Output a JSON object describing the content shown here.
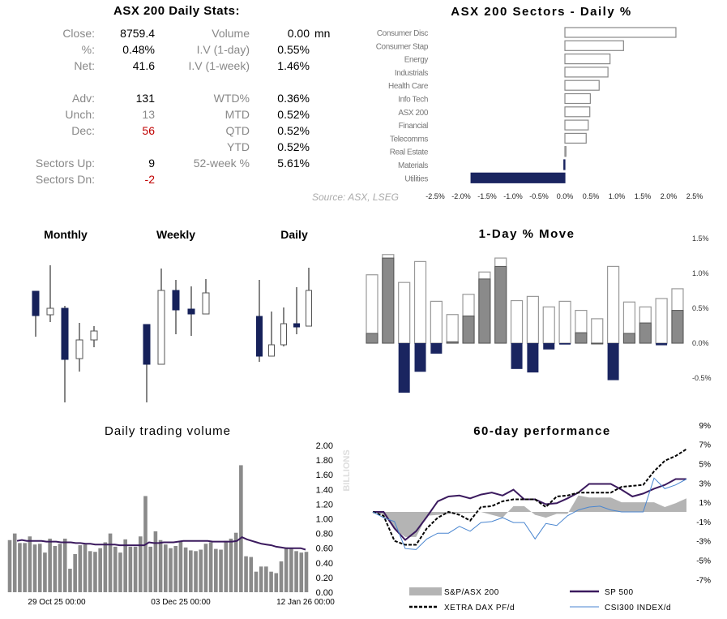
{
  "stats": {
    "title": "ASX 200 Daily Stats:",
    "left": [
      {
        "label": "Close:",
        "value": "8759.4"
      },
      {
        "label": "%:",
        "value": "0.48%"
      },
      {
        "label": "Net:",
        "value": "41.6"
      },
      {
        "label": "Adv:",
        "value": "131"
      },
      {
        "label": "Unch:",
        "value": "13"
      },
      {
        "label": "Dec:",
        "value": "56"
      },
      {
        "label": "Sectors Up:",
        "value": "9"
      },
      {
        "label": "Sectors Dn:",
        "value": "-2"
      }
    ],
    "right": [
      {
        "label": "Volume",
        "value": "0.00",
        "unit": "mn"
      },
      {
        "label": "I.V (1-day)",
        "value": "0.55%"
      },
      {
        "label": "I.V (1-week)",
        "value": "1.46%"
      },
      {
        "label": "WTD%",
        "value": "0.36%"
      },
      {
        "label": "MTD",
        "value": "0.52%"
      },
      {
        "label": "QTD",
        "value": "0.52%"
      },
      {
        "label": "YTD",
        "value": "0.52%"
      },
      {
        "label": "52-week %",
        "value": "5.61%"
      }
    ],
    "source": "Source: ASX, LSEG",
    "colors": {
      "negative": "#c00000"
    }
  },
  "chart_data": [
    {
      "id": "sectors",
      "type": "bar",
      "orientation": "horizontal",
      "title": "ASX 200 Sectors - Daily %",
      "categories": [
        "Consumer Disc",
        "Consumer Stap",
        "Energy",
        "Industrials",
        "Health Care",
        "Info Tech",
        "ASX 200",
        "Financial",
        "Telecomms",
        "Real Estate",
        "Materials",
        "Utilities"
      ],
      "values": [
        2.14,
        1.13,
        0.87,
        0.83,
        0.66,
        0.49,
        0.48,
        0.45,
        0.41,
        0.02,
        -0.02,
        -1.81
      ],
      "xlim": [
        -2.5,
        2.5
      ],
      "ticks": [
        "-2.5%",
        "-2.0%",
        "-1.5%",
        "-1.0%",
        "-0.5%",
        "0.0%",
        "0.5%",
        "1.0%",
        "1.5%",
        "2.0%",
        "2.5%"
      ],
      "colors": {
        "positive": "#ffffff",
        "negative": "#1a2560"
      }
    },
    {
      "id": "candles",
      "type": "candlestick",
      "panels": [
        {
          "title": "Monthly",
          "candles": [
            [
              141,
              111,
              141,
              85
            ],
            [
              112,
              120,
              173,
              103
            ],
            [
              120,
              57,
              123,
              4
            ],
            [
              58,
              81,
              102,
              42
            ],
            [
              81,
              92,
              98,
              72
            ]
          ]
        },
        {
          "title": "Weekly",
          "candles": [
            [
              100,
              51,
              100,
              4
            ],
            [
              51,
              142,
              169,
              51
            ],
            [
              142,
              118,
              155,
              88
            ],
            [
              119,
              113,
              147,
              86
            ],
            [
              113,
              139,
              156,
              113
            ]
          ]
        },
        {
          "title": "Daily",
          "candles": [
            [
              110,
              61,
              155,
              54
            ],
            [
              61,
              75,
              116,
              61
            ],
            [
              75,
              101,
              121,
              73
            ],
            [
              101,
              97,
              146,
              88
            ],
            [
              98,
              142,
              170,
              98
            ]
          ]
        }
      ],
      "colors": {
        "down": "#16215a",
        "up": "#ffffff"
      }
    },
    {
      "id": "oneday",
      "type": "bar",
      "title": "1-Day % Move",
      "ylim": [
        -0.5,
        1.5
      ],
      "ticks": [
        "1.5%",
        "1.0%",
        "0.5%",
        "0.0%",
        "-0.5%"
      ],
      "high": [
        0.98,
        1.27,
        0.87,
        1.17,
        0.6,
        0.41,
        0.7,
        1.02,
        1.22,
        0.61,
        0.67,
        0.52,
        0.6,
        0.47,
        0.35,
        1.1,
        0.59,
        0.52,
        0.64,
        0.78
      ],
      "close": [
        0.14,
        1.22,
        -0.71,
        -0.41,
        -0.15,
        0.02,
        0.39,
        0.92,
        1.1,
        -0.37,
        -0.42,
        -0.09,
        -0.02,
        0.15,
        0.0,
        -0.53,
        0.14,
        0.29,
        -0.03,
        0.47
      ],
      "colors": {
        "up": "#8a8a8a",
        "down": "#1a2560"
      }
    },
    {
      "id": "volume",
      "type": "bar",
      "title": "Daily trading volume",
      "ylabel": "BILLIONS",
      "ylim": [
        0,
        2
      ],
      "ticks": [
        "2.00",
        "1.80",
        "1.60",
        "1.40",
        "1.20",
        "1.00",
        "0.80",
        "0.60",
        "0.40",
        "0.20",
        "0.00"
      ],
      "xticks": [
        "29 Oct 25 00:00",
        "03 Dec 25 00:00",
        "12 Jan 26 00:00"
      ],
      "values": [
        0.71,
        0.8,
        0.67,
        0.67,
        0.76,
        0.65,
        0.66,
        0.54,
        0.73,
        0.63,
        0.66,
        0.73,
        0.32,
        0.52,
        0.64,
        0.65,
        0.56,
        0.55,
        0.6,
        0.68,
        0.8,
        0.62,
        0.54,
        0.72,
        0.62,
        0.62,
        0.76,
        1.31,
        0.62,
        0.83,
        0.71,
        0.65,
        0.6,
        0.63,
        0.69,
        0.61,
        0.57,
        0.56,
        0.58,
        0.66,
        0.68,
        0.59,
        0.58,
        0.7,
        0.73,
        0.81,
        1.73,
        0.49,
        0.48,
        0.28,
        0.35,
        0.35,
        0.28,
        0.26,
        0.42,
        0.61,
        0.6,
        0.56,
        0.54,
        0.55
      ],
      "moving_average": [
        0.7,
        0.71,
        0.7,
        0.7,
        0.7,
        0.7,
        0.69,
        0.69,
        0.69,
        0.68,
        0.68,
        0.68,
        0.67,
        0.67,
        0.66,
        0.66,
        0.65,
        0.65,
        0.65,
        0.65,
        0.65,
        0.64,
        0.64,
        0.64,
        0.64,
        0.64,
        0.64,
        0.68,
        0.67,
        0.67,
        0.68,
        0.68,
        0.68,
        0.69,
        0.7,
        0.7,
        0.7,
        0.7,
        0.7,
        0.7,
        0.69,
        0.69,
        0.69,
        0.69,
        0.69,
        0.7,
        0.75,
        0.72,
        0.7,
        0.68,
        0.66,
        0.65,
        0.64,
        0.62,
        0.61,
        0.6,
        0.6,
        0.6,
        0.6,
        0.58
      ],
      "colors": {
        "bar": "#8a8a8a",
        "line": "#3b1a5e"
      }
    },
    {
      "id": "perf",
      "type": "line",
      "title": "60-day performance",
      "ylim": [
        -7,
        9
      ],
      "ticks": [
        "9%",
        "7%",
        "5%",
        "3%",
        "1%",
        "-1%",
        "-3%",
        "-5%",
        "-7%"
      ],
      "series": [
        {
          "name": "S&P/ASX 200",
          "style": "area",
          "color": "#b4b4b4",
          "values": [
            0,
            -0.3,
            -1.8,
            -2.6,
            -2.6,
            -0.4,
            -0.3,
            -0.2,
            -0.1,
            -0.1,
            0,
            -0.3,
            -0.6,
            0.6,
            0.6,
            -0.3,
            -0.6,
            -0.2,
            -0.2,
            1.7,
            1.5,
            1.5,
            1.5,
            1.0,
            1.0,
            1.0,
            1.0,
            0.5,
            0.9,
            1.4
          ]
        },
        {
          "name": "SP 500",
          "style": "line",
          "color": "#3b1a5e",
          "values": [
            0,
            0,
            -1.7,
            -2.9,
            -2.0,
            -0.5,
            1.1,
            1.6,
            1.7,
            1.4,
            1.8,
            2.0,
            1.7,
            2.3,
            1.3,
            1.3,
            0.8,
            0.9,
            1.4,
            2.0,
            2.9,
            2.9,
            2.9,
            2.3,
            1.6,
            1.9,
            2.4,
            2.8,
            3.4,
            3.4
          ]
        },
        {
          "name": "XETRA DAX PF/d",
          "style": "dashed",
          "color": "#000000",
          "values": [
            0,
            -0.4,
            -3.0,
            -3.4,
            -3.4,
            -1.7,
            -0.6,
            0.0,
            -0.3,
            -0.9,
            0.5,
            0.6,
            1.1,
            1.3,
            1.3,
            1.3,
            0.5,
            1.6,
            1.7,
            2.0,
            2.0,
            2.0,
            2.0,
            2.6,
            2.7,
            2.8,
            4.2,
            5.3,
            5.8,
            6.5
          ]
        },
        {
          "name": "CSI300 INDEX/d",
          "style": "thin",
          "color": "#4a86d0",
          "values": [
            0,
            -0.6,
            -1.0,
            -3.8,
            -3.9,
            -2.8,
            -2.2,
            -2.2,
            -1.5,
            -2.0,
            -1.1,
            -1.0,
            -0.6,
            -1.1,
            -1.1,
            -2.8,
            -1.2,
            -1.4,
            -0.4,
            0.2,
            0.5,
            0.6,
            0.2,
            0.0,
            0.0,
            0.0,
            3.5,
            2.4,
            2.8,
            3.4
          ]
        }
      ]
    }
  ]
}
